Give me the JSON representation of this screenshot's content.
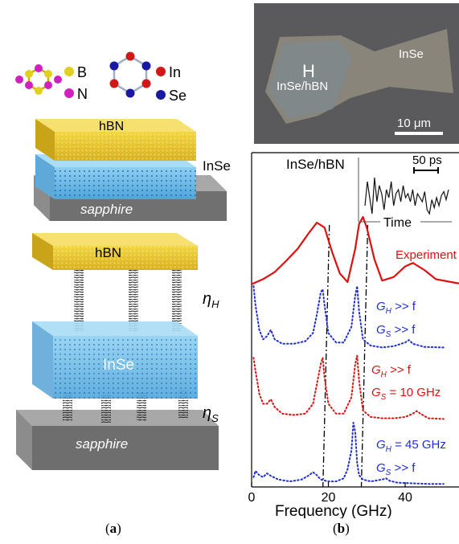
{
  "figure": {
    "panel_a": {
      "caption_letter": "a",
      "legend": {
        "b_label": "B",
        "n_label": "N",
        "in_label": "In",
        "se_label": "Se"
      },
      "top_diagram": {
        "hbn_label": "hBN",
        "inse_label": "InSe",
        "substrate_label": "sapphire"
      },
      "bottom_diagram": {
        "hbn_label": "hBN",
        "inse_label": "InSe",
        "substrate_label": "sapphire",
        "eta_h_base": "η",
        "eta_h_sub": "H",
        "eta_s_base": "η",
        "eta_s_sub": "S"
      },
      "colors": {
        "boron": "#e0d020",
        "nitrogen": "#d020c0",
        "indium": "#d01818",
        "selenium": "#1818a0",
        "hbn_layer": "#e8c830",
        "inse_layer": "#7fc0ea",
        "substrate": "#8a8a8a"
      }
    },
    "panel_b": {
      "caption_letter": "b",
      "micrograph": {
        "label_h": "H",
        "label_inse_hbn": "InSe/hBN",
        "label_inse": "InSe",
        "scale_bar": "10 μm"
      },
      "plot": {
        "sample_label": "InSe/hBN",
        "inset_scale": "50 ps",
        "inset_axis_label": "Time",
        "xlabel": "Frequency (GHz)",
        "curve_labels": [
          {
            "text": "Experiment",
            "color": "#e01010"
          },
          {
            "g1_base": "G",
            "g1_sub": "H",
            "g1_rest": " >> f",
            "g2_base": "G",
            "g2_sub": "S",
            "g2_rest": " >> f",
            "color": "#1f2ed8"
          },
          {
            "g1_base": "G",
            "g1_sub": "H",
            "g1_rest": " >> f",
            "g2_base": "G",
            "g2_sub": "S",
            "g2_rest": " = 10 GHz",
            "color": "#e01010"
          },
          {
            "g1_base": "G",
            "g1_sub": "H",
            "g1_rest": " = 45 GHz",
            "g2_base": "G",
            "g2_sub": "S",
            "g2_rest": " >> f",
            "color": "#1f2ed8"
          }
        ]
      }
    }
  },
  "chart_data": {
    "type": "line",
    "title": "InSe/hBN",
    "xlabel": "Frequency (GHz)",
    "ylabel": "",
    "xlim": [
      0,
      58
    ],
    "xticks": [
      0,
      20,
      40
    ],
    "guide_lines_x": [
      19,
      29
    ],
    "series": [
      {
        "name": "Experiment",
        "style": "solid",
        "color": "#e01010",
        "x": [
          0,
          3,
          6,
          9,
          12,
          15,
          17,
          19,
          21,
          23,
          25,
          27,
          28,
          29,
          30,
          32,
          34,
          37,
          40,
          42,
          45,
          48,
          52,
          55,
          58
        ],
        "y": [
          0.05,
          0.12,
          0.22,
          0.38,
          0.55,
          0.78,
          0.92,
          0.85,
          0.5,
          0.2,
          0.08,
          0.55,
          0.9,
          1.0,
          0.85,
          0.4,
          0.1,
          0.15,
          0.3,
          0.35,
          0.25,
          0.12,
          0.08,
          0.05,
          0.08
        ]
      },
      {
        "name": "GH >> f, GS >> f",
        "style": "dotted",
        "color": "#1f2ed8",
        "x": [
          0.5,
          1,
          2,
          3,
          4,
          5,
          6,
          8,
          11,
          14,
          16,
          17,
          18,
          18.5,
          19,
          20,
          22,
          24,
          26,
          27,
          27.5,
          28,
          29,
          31,
          34,
          37,
          40,
          41,
          42,
          45,
          50
        ],
        "y": [
          1.0,
          0.7,
          0.3,
          0.15,
          0.2,
          0.3,
          0.15,
          0.08,
          0.08,
          0.12,
          0.25,
          0.55,
          0.9,
          0.95,
          0.7,
          0.25,
          0.1,
          0.1,
          0.35,
          0.85,
          1.0,
          0.6,
          0.15,
          0.05,
          0.02,
          0.04,
          0.1,
          0.14,
          0.08,
          0.03,
          0.02
        ]
      },
      {
        "name": "GH >> f, GS = 10 GHz",
        "style": "dotted",
        "color": "#e01010",
        "x": [
          0.5,
          1,
          2,
          3,
          4,
          5,
          6,
          8,
          11,
          14,
          16,
          17,
          18,
          18.5,
          19,
          20,
          22,
          24,
          26,
          27,
          27.5,
          28,
          29,
          31,
          34,
          37,
          40,
          42,
          43,
          44,
          46,
          50
        ],
        "y": [
          0.95,
          0.75,
          0.4,
          0.25,
          0.25,
          0.32,
          0.2,
          0.1,
          0.08,
          0.1,
          0.25,
          0.55,
          0.85,
          0.95,
          0.65,
          0.25,
          0.1,
          0.1,
          0.35,
          0.85,
          0.98,
          0.6,
          0.15,
          0.05,
          0.03,
          0.03,
          0.05,
          0.1,
          0.14,
          0.1,
          0.03,
          0.02
        ]
      },
      {
        "name": "GH = 45 GHz, GS >> f",
        "style": "dotted",
        "color": "#1f2ed8",
        "x": [
          0.5,
          1,
          2,
          3,
          4,
          5,
          7,
          10,
          13,
          15,
          16,
          17,
          18,
          20,
          22,
          24,
          25,
          26,
          26.5,
          27,
          27.5,
          28,
          29,
          31,
          34,
          35,
          36,
          38,
          42,
          46,
          50
        ],
        "y": [
          0.12,
          0.22,
          0.15,
          0.12,
          0.18,
          0.14,
          0.08,
          0.05,
          0.08,
          0.15,
          0.2,
          0.15,
          0.08,
          0.05,
          0.05,
          0.1,
          0.25,
          0.55,
          1.0,
          0.85,
          0.35,
          0.15,
          0.08,
          0.05,
          0.08,
          0.1,
          0.06,
          0.03,
          0.02,
          0.01,
          0.01
        ]
      }
    ],
    "inset": {
      "type": "line",
      "xlabel": "Time",
      "scale_label": "50 ps",
      "y": [
        0.2,
        0.8,
        0.4,
        0.0,
        0.9,
        0.3,
        0.7,
        0.5,
        0.1,
        0.6,
        0.4,
        0.8,
        0.2,
        0.5,
        0.6,
        0.3,
        0.7,
        0.4,
        0.5,
        0.3,
        0.6,
        0.2,
        0.5,
        0.4,
        0.3,
        0.55,
        0.1,
        0.0,
        0.35,
        0.15,
        0.4,
        0.2,
        0.45,
        0.55,
        0.35,
        0.6
      ]
    }
  }
}
